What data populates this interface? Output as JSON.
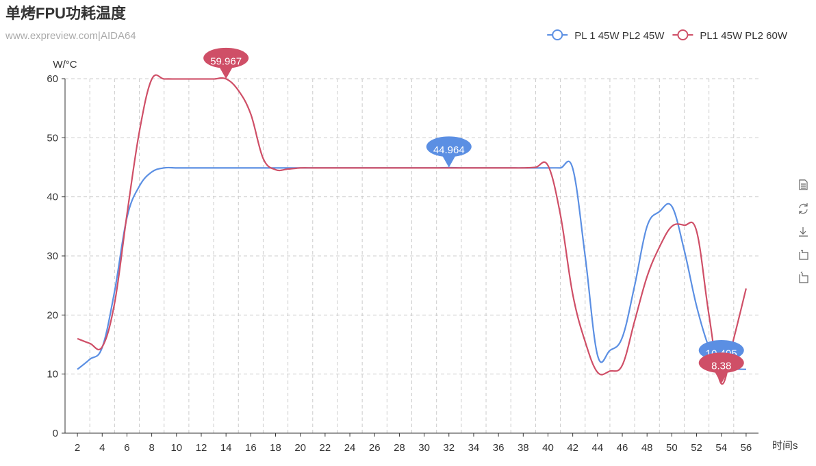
{
  "chart_data": {
    "type": "line",
    "title": "单烤FPU功耗温度",
    "subtitle": "www.expreview.com|AIDA64",
    "y_axis_label": "W/°C",
    "x_axis_label": "时间s",
    "categories": [
      null,
      "2",
      null,
      "4",
      null,
      "6",
      null,
      "8",
      null,
      "10",
      null,
      "12",
      null,
      "14",
      null,
      "16",
      null,
      "18",
      null,
      "20",
      null,
      "22",
      null,
      "24",
      null,
      "26",
      null,
      "28",
      null,
      "30",
      null,
      "32",
      null,
      "34",
      null,
      "36",
      null,
      "38",
      null,
      "40",
      null,
      "42",
      null,
      "44",
      null,
      "46",
      null,
      "48",
      null,
      "50",
      null,
      "52",
      null,
      "54",
      null,
      "56",
      null
    ],
    "series": [
      {
        "name": "PL 1 45W PL2 45W",
        "color": "#5b8fe3",
        "mark_points": [
          "max",
          "min"
        ],
        "values": [
          null,
          10.8,
          12.5,
          14.5,
          24,
          36.5,
          41.8,
          44.2,
          44.9,
          44.9,
          44.9,
          44.9,
          44.9,
          44.9,
          44.9,
          44.9,
          44.9,
          44.9,
          44.9,
          44.9,
          44.9,
          44.9,
          44.9,
          44.9,
          44.9,
          44.9,
          44.9,
          44.9,
          44.9,
          44.9,
          44.9,
          44.964,
          44.9,
          44.9,
          44.9,
          44.9,
          44.9,
          44.9,
          44.9,
          44.9,
          44.9,
          44.8,
          30,
          13.2,
          14,
          16.2,
          25,
          35,
          37.5,
          38.4,
          31,
          21.5,
          14.5,
          10.495,
          10.8,
          10.8,
          null
        ]
      },
      {
        "name": "PL1 45W PL2 60W",
        "color": "#cf4f67",
        "mark_points": [
          "max",
          "min"
        ],
        "values": [
          null,
          16,
          15.2,
          14.6,
          22,
          37,
          51,
          59.9,
          59.95,
          59.95,
          59.95,
          59.95,
          59.95,
          59.967,
          58,
          54,
          46.5,
          44.6,
          44.7,
          44.9,
          44.9,
          44.9,
          44.9,
          44.9,
          44.9,
          44.9,
          44.9,
          44.9,
          44.9,
          44.9,
          44.9,
          44.9,
          44.9,
          44.9,
          44.9,
          44.9,
          44.9,
          44.9,
          45,
          45.3,
          37,
          23.5,
          15.5,
          10.3,
          10.5,
          11.5,
          19,
          26.5,
          31.5,
          35,
          35.2,
          34.2,
          20,
          8.38,
          16,
          24.5,
          null
        ]
      }
    ],
    "ylim": [
      0,
      60
    ],
    "yticks": [
      0,
      10,
      20,
      30,
      40,
      50,
      60
    ],
    "grid": true,
    "legend": "top-right",
    "smooth": true
  }
}
